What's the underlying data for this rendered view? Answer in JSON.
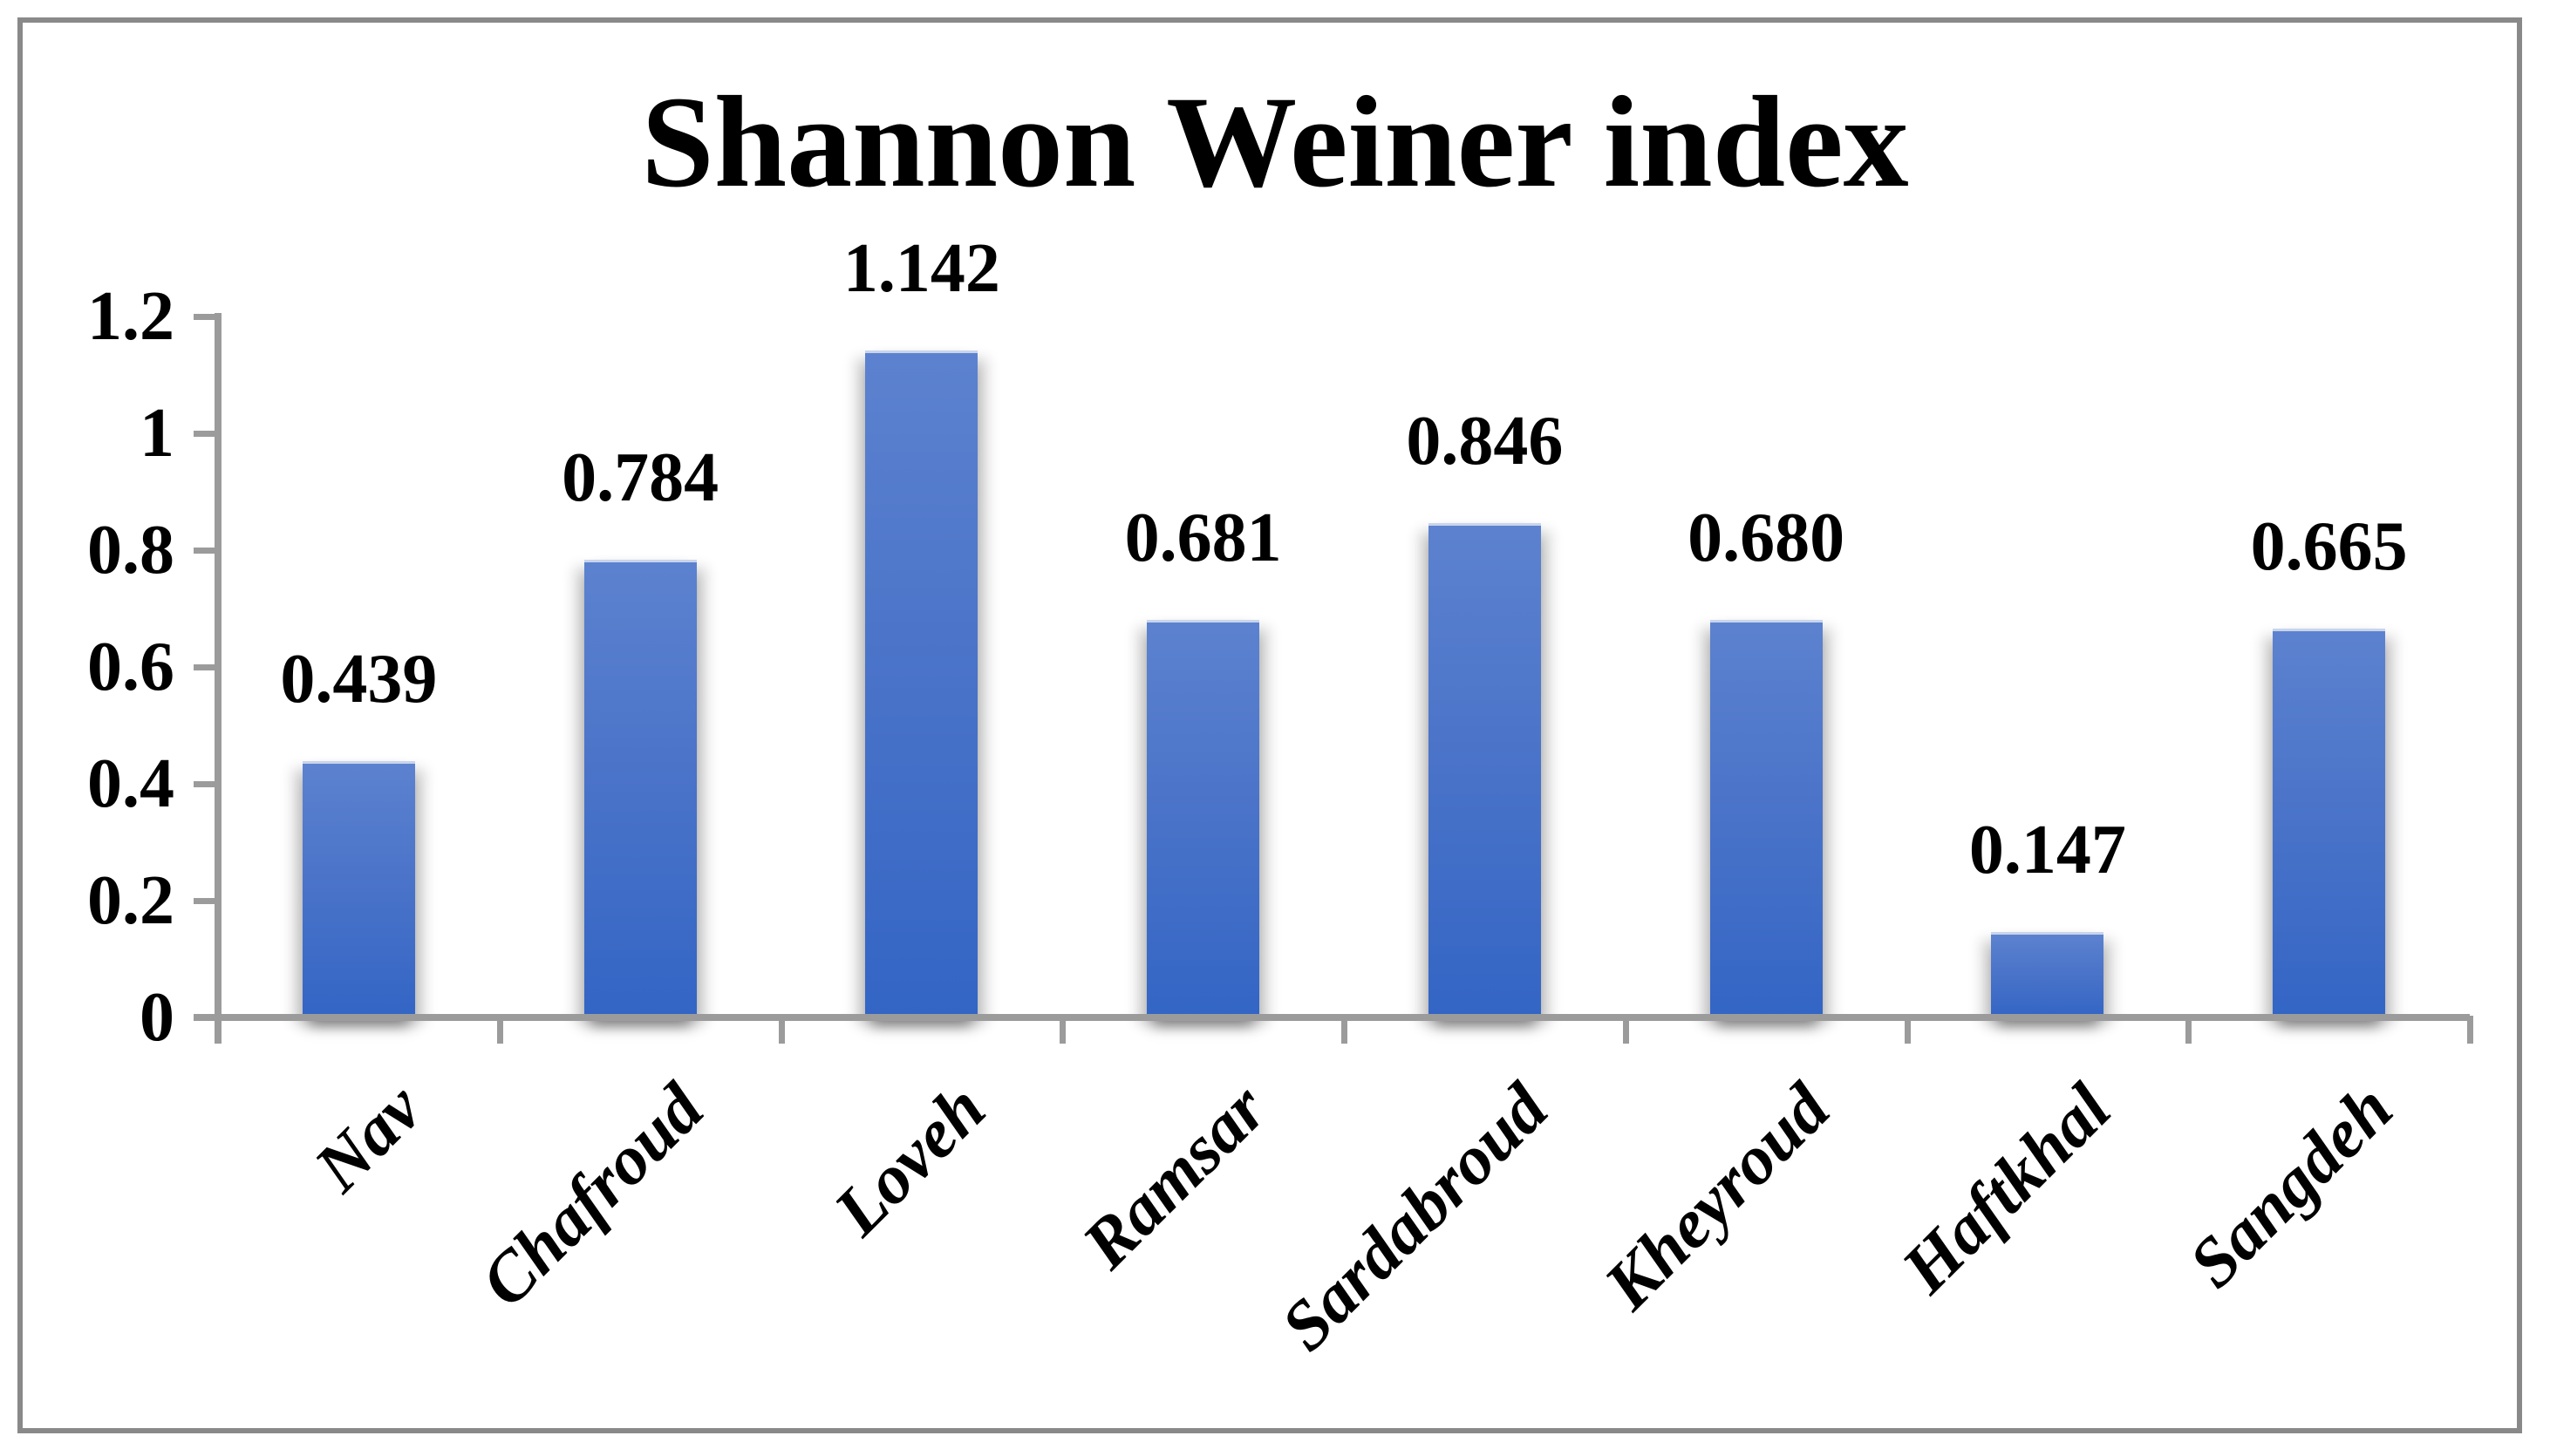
{
  "chart_data": {
    "type": "bar",
    "title": "Shannon Weiner index",
    "categories": [
      "Nav",
      "Chafroud",
      "Loveh",
      "Ramsar",
      "Sardabroud",
      "Kheyroud",
      "Haftkhal",
      "Sangdeh"
    ],
    "values": [
      0.439,
      0.784,
      1.142,
      0.681,
      0.846,
      0.68,
      0.147,
      0.665
    ],
    "value_labels": [
      "0.439",
      "0.784",
      "1.142",
      "0.681",
      "0.846",
      "0.680",
      "0.147",
      "0.665"
    ],
    "y_ticks": [
      {
        "label": "1.2",
        "value": 1.2
      },
      {
        "label": "1",
        "value": 1.0
      },
      {
        "label": "0.8",
        "value": 0.8
      },
      {
        "label": "0.6",
        "value": 0.6
      },
      {
        "label": "0.4",
        "value": 0.4
      },
      {
        "label": "0.2",
        "value": 0.2
      },
      {
        "label": "0",
        "value": 0.0
      }
    ],
    "ylim": [
      0,
      1.2
    ],
    "xlabel": "",
    "ylabel": "",
    "grid": "off",
    "legend": "none",
    "colors": {
      "bar_top": "#5C82CF",
      "bar_bottom": "#3365C5",
      "bar_top_edge": "#C9D4EC",
      "axis": "#9B9B9B",
      "frame": "#898989",
      "text": "#000000",
      "background": "#FFFFFF"
    }
  }
}
